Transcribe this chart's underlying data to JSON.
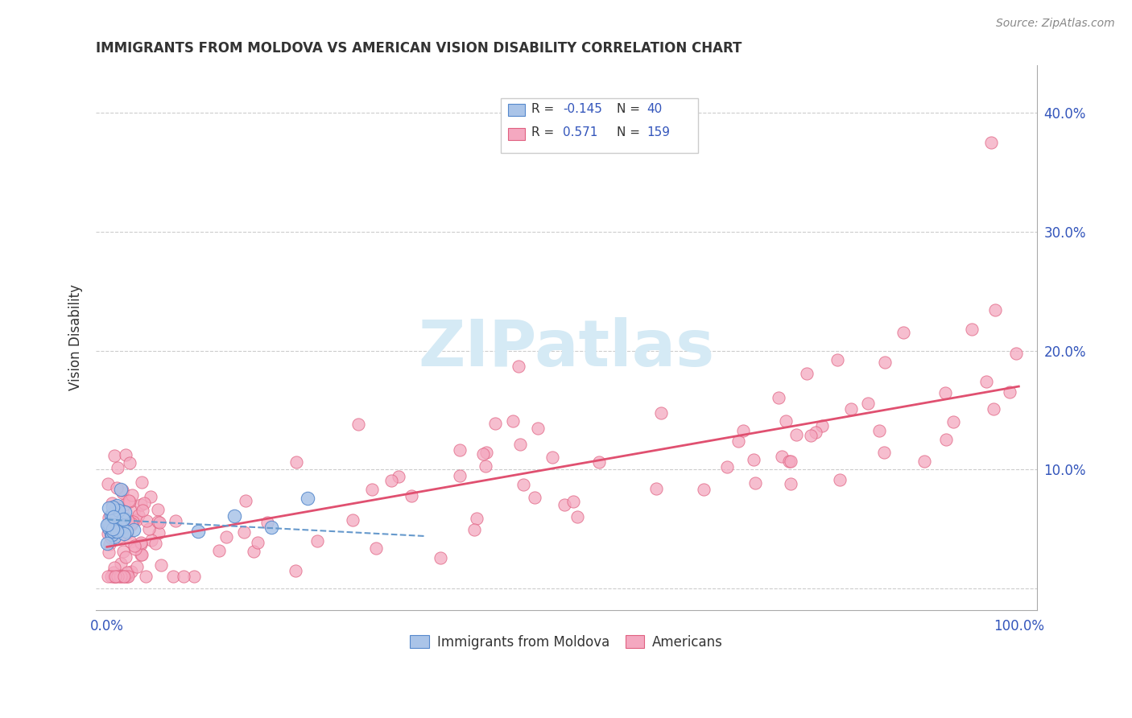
{
  "title": "IMMIGRANTS FROM MOLDOVA VS AMERICAN VISION DISABILITY CORRELATION CHART",
  "source": "Source: ZipAtlas.com",
  "ylabel": "Vision Disability",
  "color_blue": "#aac4e8",
  "color_pink": "#f4a8c0",
  "edge_blue": "#5588cc",
  "edge_pink": "#e06080",
  "trendline_blue": "#6699cc",
  "trendline_pink": "#e05070",
  "watermark_color": "#d5eaf5",
  "legend_box_color": "#f0f0f0",
  "text_blue": "#3355bb",
  "text_dark": "#333333",
  "grid_color": "#cccccc",
  "axis_color": "#aaaaaa"
}
